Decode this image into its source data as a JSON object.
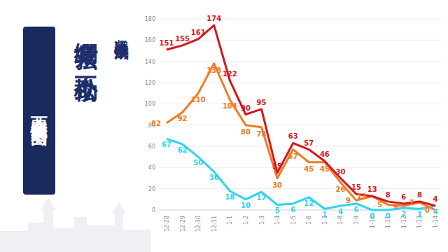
{
  "chart_data": {
    "type": "line",
    "title": "西安疫情趋势图",
    "subtitle": "绷紧弦 不松劲",
    "annotations": [
      "坚决巩固抗击疫情成果"
    ],
    "categories": [
      "12-28",
      "12-29",
      "12-30",
      "12-31",
      "1-1",
      "1-2",
      "1-3",
      "1-4",
      "1-5",
      "1-6",
      "1-7",
      "1-8",
      "1-9",
      "1-10",
      "1-11",
      "1-12",
      "1-13",
      "1-14"
    ],
    "series": [
      {
        "color": "#d7161c",
        "values": [
          151,
          155,
          161,
          174,
          122,
          90,
          95,
          35,
          63,
          57,
          46,
          30,
          15,
          13,
          8,
          6,
          8,
          4
        ]
      },
      {
        "color": "#f07b22",
        "values": [
          82,
          92,
          110,
          138,
          104,
          80,
          78,
          30,
          57,
          45,
          45,
          26,
          9,
          13,
          5,
          4,
          7,
          0
        ]
      },
      {
        "color": "#2fd3ef",
        "values": [
          67,
          62,
          50,
          36,
          18,
          10,
          17,
          5,
          6,
          12,
          1,
          4,
          6,
          0,
          0,
          2,
          1,
          4
        ]
      }
    ],
    "ylim": [
      0,
      180
    ],
    "yticks": [
      0,
      20,
      40,
      60,
      80,
      100,
      120,
      140,
      160,
      180
    ],
    "grid": true,
    "data_labels": true
  }
}
